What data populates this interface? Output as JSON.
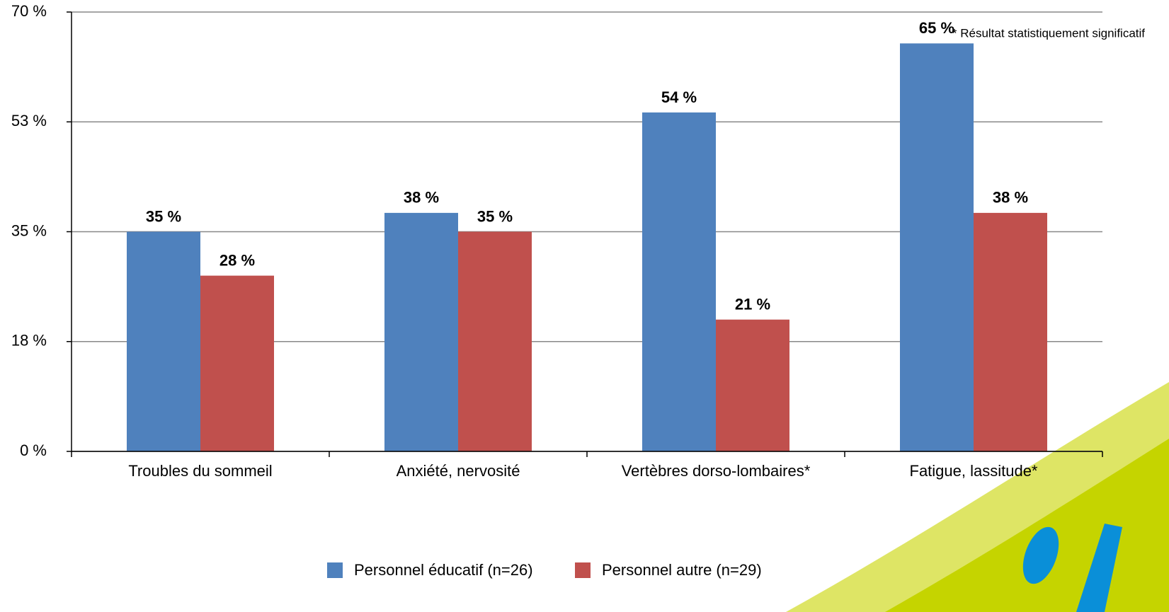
{
  "chart_data": {
    "type": "bar",
    "annotation": "* Résultat statistiquement significatif",
    "categories": [
      "Troubles du sommeil",
      "Anxiété, nervosité",
      "Vertèbres dorso-lombaires*",
      "Fatigue, lassitude*"
    ],
    "series": [
      {
        "name": "Personnel éducatif (n=26)",
        "color": "#4f81bd",
        "values": [
          35,
          38,
          54,
          65
        ],
        "value_labels": [
          "35 %",
          "38 %",
          "54 %",
          "65 %"
        ]
      },
      {
        "name": "Personnel autre (n=29)",
        "color": "#c0504d",
        "values": [
          28,
          35,
          21,
          38
        ],
        "value_labels": [
          "28 %",
          "35 %",
          "21 %",
          "38 %"
        ]
      }
    ],
    "ylim": [
      0,
      70
    ],
    "yticks": [
      {
        "value": 0,
        "label": "0 %"
      },
      {
        "value": 17.5,
        "label": "18 %"
      },
      {
        "value": 35,
        "label": "35 %"
      },
      {
        "value": 52.5,
        "label": "53 %"
      },
      {
        "value": 70,
        "label": "70 %"
      }
    ],
    "grid": true
  }
}
